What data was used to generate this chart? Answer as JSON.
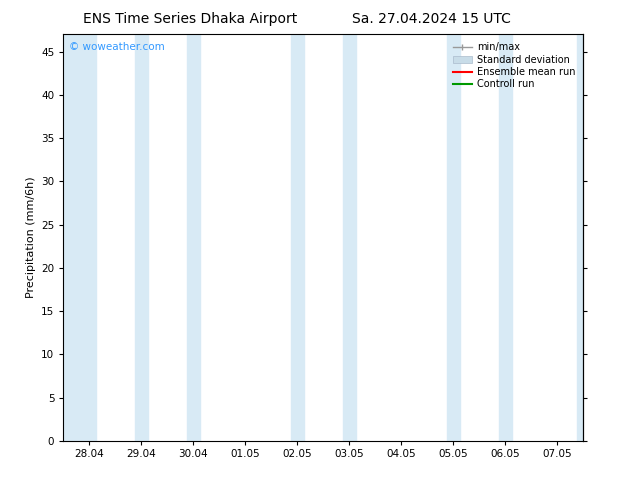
{
  "title_left": "ENS Time Series Dhaka Airport",
  "title_right": "Sa. 27.04.2024 15 UTC",
  "ylabel": "Precipitation (mm/6h)",
  "ylim": [
    0,
    47
  ],
  "yticks": [
    0,
    5,
    10,
    15,
    20,
    25,
    30,
    35,
    40,
    45
  ],
  "xtick_labels": [
    "28.04",
    "29.04",
    "30.04",
    "01.05",
    "02.05",
    "03.05",
    "04.05",
    "05.05",
    "06.05",
    "07.05"
  ],
  "xtick_positions": [
    0,
    1,
    2,
    3,
    4,
    5,
    6,
    7,
    8,
    9
  ],
  "xlim": [
    -0.5,
    9.5
  ],
  "watermark": "© woweather.com",
  "watermark_color": "#3399ff",
  "background_color": "#ffffff",
  "plot_bg_color": "#ffffff",
  "shaded_bands": [
    {
      "x_start": -0.5,
      "x_end": 0.125,
      "color": "#d8eaf5"
    },
    {
      "x_start": 0.875,
      "x_end": 1.125,
      "color": "#d8eaf5"
    },
    {
      "x_start": 1.875,
      "x_end": 2.125,
      "color": "#d8eaf5"
    },
    {
      "x_start": 3.875,
      "x_end": 4.125,
      "color": "#d8eaf5"
    },
    {
      "x_start": 4.875,
      "x_end": 5.125,
      "color": "#d8eaf5"
    },
    {
      "x_start": 6.875,
      "x_end": 7.125,
      "color": "#d8eaf5"
    },
    {
      "x_start": 7.875,
      "x_end": 8.125,
      "color": "#d8eaf5"
    },
    {
      "x_start": 9.375,
      "x_end": 9.5,
      "color": "#d8eaf5"
    }
  ],
  "legend_items": [
    {
      "label": "min/max",
      "color": "#aaaaaa",
      "lw": 1.5
    },
    {
      "label": "Standard deviation",
      "color": "#c8dce8",
      "lw": 8
    },
    {
      "label": "Ensemble mean run",
      "color": "#ff0000",
      "lw": 1.5
    },
    {
      "label": "Controll run",
      "color": "#009900",
      "lw": 1.5
    }
  ],
  "font_family": "DejaVu Sans",
  "title_fontsize": 10,
  "tick_fontsize": 7.5,
  "ylabel_fontsize": 8,
  "legend_fontsize": 7,
  "axis_color": "#000000",
  "ensemble_mean_y": [
    0,
    0,
    0,
    0,
    0,
    0,
    0,
    0,
    0,
    0
  ],
  "control_run_y": [
    0,
    0,
    0,
    0,
    0,
    0,
    0,
    0,
    0,
    0
  ]
}
